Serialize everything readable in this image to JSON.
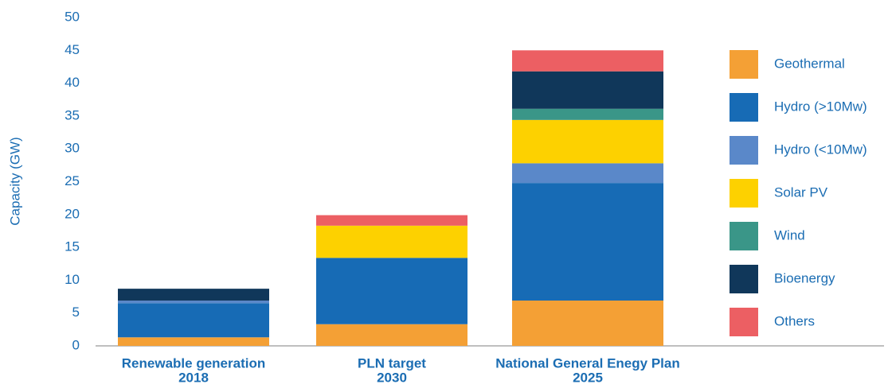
{
  "chart_data": {
    "type": "stacked_bar",
    "ylabel": "Capacity (GW)",
    "categories": [
      [
        "Renewable generation",
        "2018"
      ],
      [
        "PLN target",
        "2030"
      ],
      [
        "National General Enegy Plan",
        "2025"
      ]
    ],
    "series": [
      {
        "name": "Geothermal",
        "color": "#f4a035",
        "values": [
          1.3,
          3.3,
          6.9
        ]
      },
      {
        "name": "Hydro (>10Mw)",
        "color": "#176bb5",
        "values": [
          5.2,
          10.1,
          17.9
        ]
      },
      {
        "name": "Hydro (<10Mw)",
        "color": "#5a88c9",
        "values": [
          0.4,
          0,
          3.0
        ]
      },
      {
        "name": "Solar PV",
        "color": "#fdd100",
        "values": [
          0,
          4.9,
          6.6
        ]
      },
      {
        "name": "Wind",
        "color": "#3a9688",
        "values": [
          0,
          0,
          1.7
        ]
      },
      {
        "name": "Bioenergy",
        "color": "#10375a",
        "values": [
          1.8,
          0,
          5.7
        ]
      },
      {
        "name": "Others",
        "color": "#ec5f63",
        "values": [
          0,
          1.6,
          3.2
        ]
      }
    ],
    "ylim": [
      0,
      50
    ],
    "yticks": [
      0,
      5,
      10,
      15,
      20,
      25,
      30,
      35,
      40,
      45,
      50
    ],
    "legend": "right"
  }
}
